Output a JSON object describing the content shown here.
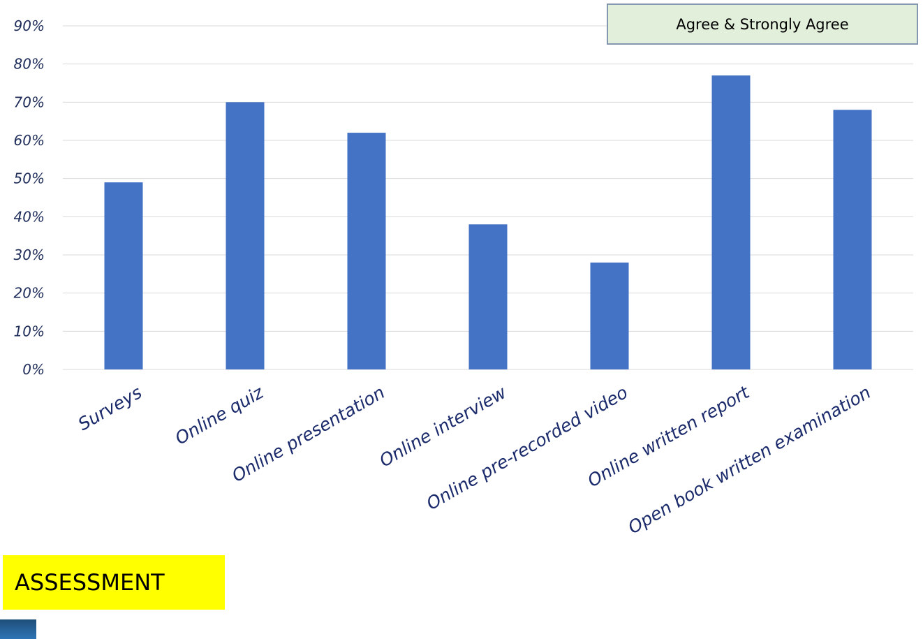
{
  "chart_data": {
    "type": "bar",
    "categories": [
      "Surveys",
      "Online quiz",
      "Online presentation",
      "Online interview",
      "Online pre-recorded video",
      "Online written report",
      "Open book written examination"
    ],
    "series": [
      {
        "name": "Agree & Strongly Agree",
        "values": [
          49,
          70,
          62,
          38,
          28,
          77,
          68
        ],
        "color": "#4472c4"
      }
    ],
    "yticks": [
      "0%",
      "10%",
      "20%",
      "30%",
      "40%",
      "50%",
      "60%",
      "70%",
      "80%",
      "90%"
    ],
    "ylim": [
      0,
      90
    ],
    "y_unit": "%",
    "grid": true,
    "legend_position": "top-right",
    "title": "",
    "xlabel": "",
    "ylabel": ""
  },
  "legend": {
    "label": "Agree & Strongly Agree"
  },
  "section": {
    "label": "ASSESSMENT",
    "color": "#ffff00"
  },
  "colors": {
    "bar": "#4472c4",
    "gridline": "#d9d9d9",
    "tick_text": "#1f2d5a",
    "category_text": "#1a2a6b"
  }
}
